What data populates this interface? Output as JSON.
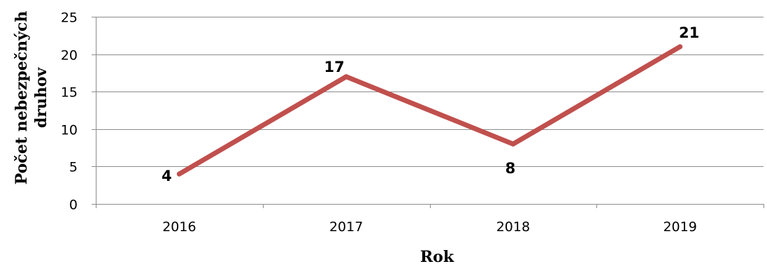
{
  "chart_data": {
    "type": "line",
    "title": "",
    "xlabel": "Rok",
    "ylabel_lines": [
      "Počet nebezpečných",
      "druhov"
    ],
    "categories": [
      "2016",
      "2017",
      "2018",
      "2019"
    ],
    "series": [
      {
        "values": [
          4,
          17,
          8,
          21
        ],
        "color": "#C0504D"
      }
    ],
    "ylim": [
      0,
      25
    ],
    "yticks": [
      0,
      5,
      10,
      15,
      20,
      25
    ],
    "grid": true,
    "legend": "none",
    "colors": {
      "grid": "#8C8C8C",
      "axis": "#8C8C8C"
    }
  }
}
